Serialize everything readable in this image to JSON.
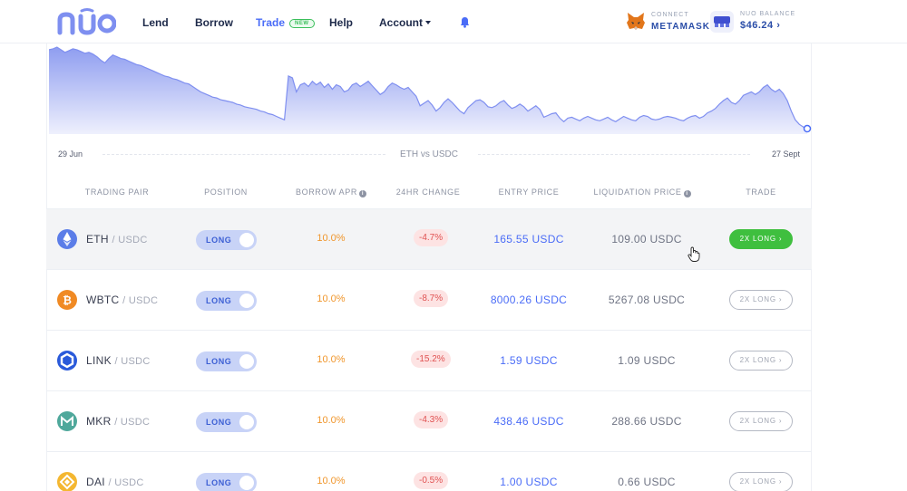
{
  "header": {
    "logo_text": "nuo",
    "nav": [
      {
        "label": "Lend"
      },
      {
        "label": "Borrow"
      },
      {
        "label": "Trade",
        "badge": "NEW"
      },
      {
        "label": "Help"
      },
      {
        "label": "Account"
      }
    ],
    "wallet": {
      "connect_label": "CONNECT",
      "name": "METAMASK"
    },
    "balance": {
      "label": "NUO BALANCE",
      "value": "$46.24 ›"
    }
  },
  "chart_data": {
    "type": "area",
    "title": "ETH vs USDC",
    "x_start_label": "29 Jun",
    "x_end_label": "27 Sept",
    "grid": false,
    "legend": "none",
    "color": "#8e9df0",
    "values": [
      100,
      101,
      103,
      100,
      97,
      99,
      101,
      100,
      98,
      96,
      97,
      95,
      92,
      88,
      85,
      90,
      94,
      92,
      90,
      89,
      87,
      85,
      83,
      82,
      80,
      78,
      76,
      74,
      72,
      70,
      69,
      67,
      66,
      64,
      62,
      61,
      58,
      55,
      52,
      50,
      48,
      46,
      45,
      43,
      42,
      41,
      40,
      38,
      37,
      35,
      34,
      33,
      32,
      30,
      29,
      27,
      26,
      24,
      22,
      20,
      70,
      68,
      52,
      60,
      62,
      58,
      64,
      60,
      63,
      57,
      61,
      55,
      60,
      58,
      52,
      54,
      60,
      62,
      58,
      61,
      64,
      59,
      54,
      49,
      52,
      58,
      62,
      60,
      57,
      55,
      57,
      52,
      47,
      36,
      39,
      42,
      37,
      30,
      34,
      40,
      44,
      40,
      35,
      30,
      27,
      34,
      38,
      42,
      43,
      40,
      35,
      34,
      36,
      40,
      42,
      37,
      33,
      35,
      38,
      35,
      30,
      33,
      36,
      32,
      23,
      25,
      27,
      28,
      22,
      18,
      22,
      23,
      21,
      19,
      22,
      24,
      22,
      20,
      19,
      21,
      23,
      20,
      18,
      21,
      24,
      22,
      20,
      19,
      23,
      25,
      24,
      21,
      20,
      21,
      23,
      24,
      23,
      22,
      20,
      19,
      22,
      24,
      25,
      22,
      24,
      28,
      30,
      33,
      38,
      42,
      45,
      40,
      38,
      42,
      48,
      50,
      52,
      49,
      52,
      57,
      60,
      55,
      52,
      55,
      50,
      42,
      30,
      20,
      15,
      12,
      10
    ]
  },
  "table": {
    "headers": {
      "pair": "TRADING PAIR",
      "position": "POSITION",
      "apr": "BORROW APR",
      "change": "24HR CHANGE",
      "entry": "ENTRY PRICE",
      "liq": "LIQUIDATION PRICE",
      "trade": "TRADE"
    },
    "rows": [
      {
        "base": "ETH",
        "quote": "/ USDC",
        "position": "LONG",
        "apr": "10.0%",
        "change": "-4.7%",
        "entry": "165.55 USDC",
        "liq": "109.00 USDC",
        "trade": "2X LONG ›",
        "icon": "ethereum-icon",
        "color": "#5b7de8"
      },
      {
        "base": "WBTC",
        "quote": "/ USDC",
        "position": "LONG",
        "apr": "10.0%",
        "change": "-8.7%",
        "entry": "8000.26 USDC",
        "liq": "5267.08 USDC",
        "trade": "2X LONG ›",
        "icon": "bitcoin-icon",
        "color": "#f08a24"
      },
      {
        "base": "LINK",
        "quote": "/ USDC",
        "position": "LONG",
        "apr": "10.0%",
        "change": "-15.2%",
        "entry": "1.59 USDC",
        "liq": "1.09 USDC",
        "trade": "2X LONG ›",
        "icon": "chainlink-icon",
        "color": "#2a5ada"
      },
      {
        "base": "MKR",
        "quote": "/ USDC",
        "position": "LONG",
        "apr": "10.0%",
        "change": "-4.3%",
        "entry": "438.46 USDC",
        "liq": "288.66 USDC",
        "trade": "2X LONG ›",
        "icon": "maker-icon",
        "color": "#4fa89b"
      },
      {
        "base": "DAI",
        "quote": "/ USDC",
        "position": "LONG",
        "apr": "10.0%",
        "change": "-0.5%",
        "entry": "1.00 USDC",
        "liq": "0.66 USDC",
        "trade": "2X LONG ›",
        "icon": "dai-icon",
        "color": "#f4b731"
      }
    ]
  }
}
